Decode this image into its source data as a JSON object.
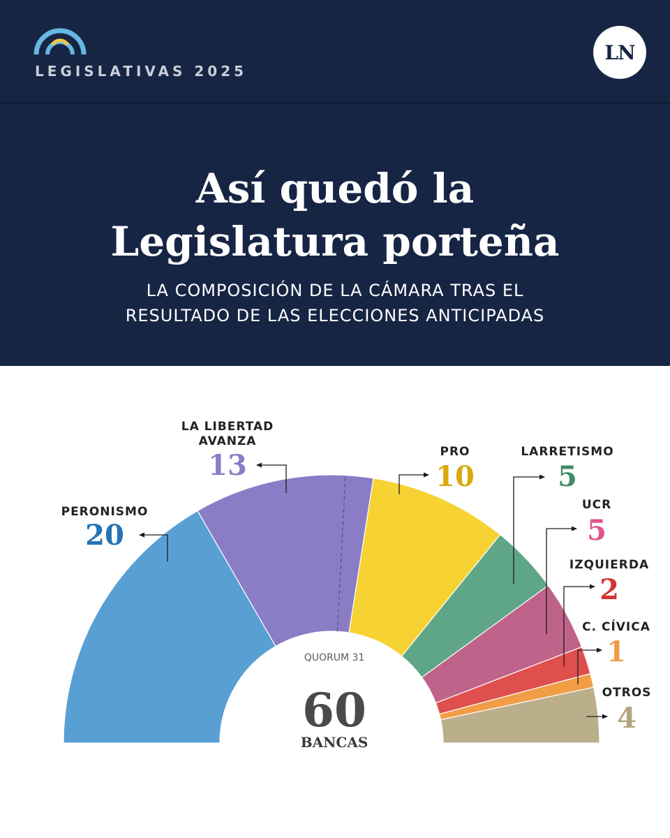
{
  "header": {
    "brand": "LEGISLATIVAS 2025",
    "publisher_badge": "LN",
    "title_line1": "Así quedó la",
    "title_line2": "Legislatura porteña",
    "subtitle_line1": "LA COMPOSICIÓN DE LA CÁMARA TRAS EL",
    "subtitle_line2": "RESULTADO DE LAS ELECCIONES ANTICIPADAS"
  },
  "colors": {
    "header_bg": "#172544",
    "brand_arc_outer": "#67b7e3",
    "brand_arc_inner": "#f2c94c"
  },
  "chart_data": {
    "type": "parliament-semicircle",
    "total": 60,
    "total_label": "BANCAS",
    "quorum": 31,
    "quorum_label": "QUORUM 31",
    "series": [
      {
        "name": "PERONISMO",
        "value": 20,
        "color": "#589fd3",
        "label_color": "#2574b5"
      },
      {
        "name": "LA LIBERTAD AVANZA",
        "value": 13,
        "color": "#8a7dc6",
        "label_color": "#8a7dc6"
      },
      {
        "name": "PRO",
        "value": 10,
        "color": "#f6d232",
        "label_color": "#d9a90d"
      },
      {
        "name": "LARRETISMO",
        "value": 5,
        "color": "#5fa689",
        "label_color": "#3f8b6a"
      },
      {
        "name": "UCR",
        "value": 5,
        "color": "#c0638a",
        "label_color": "#e0548e"
      },
      {
        "name": "IZQUIERDA",
        "value": 2,
        "color": "#df4f4d",
        "label_color": "#d43434"
      },
      {
        "name": "C. CÍVICA",
        "value": 1,
        "color": "#f09d46",
        "label_color": "#f09d46"
      },
      {
        "name": "OTROS",
        "value": 4,
        "color": "#bbae8a",
        "label_color": "#b3a57e"
      }
    ]
  }
}
